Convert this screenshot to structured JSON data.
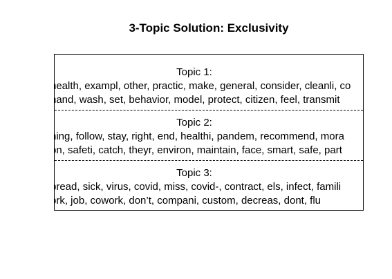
{
  "title": "3-Topic Solution: Exclusivity",
  "topics": [
    {
      "label": "Topic 1:",
      "line1": "health, exampl, other, practic, make, general, consider, cleanli, co",
      "line2": "hand, wash, set, behavior, model, protect, citizen, feel, transmit"
    },
    {
      "label": "Topic 2:",
      "line1": "hing, follow, stay, right, end, healthi, pandem, recommend, mora",
      "line2": "on, safeti, catch, theyr, environ, maintain, face, smart, safe, part"
    },
    {
      "label": "Topic 3:",
      "line1": "pread, sick, virus, covid, miss, covid-, contract, els, infect, famili",
      "line2": "ork, job, cowork, don’t, compani, custom, decreas, dont, flu"
    }
  ]
}
